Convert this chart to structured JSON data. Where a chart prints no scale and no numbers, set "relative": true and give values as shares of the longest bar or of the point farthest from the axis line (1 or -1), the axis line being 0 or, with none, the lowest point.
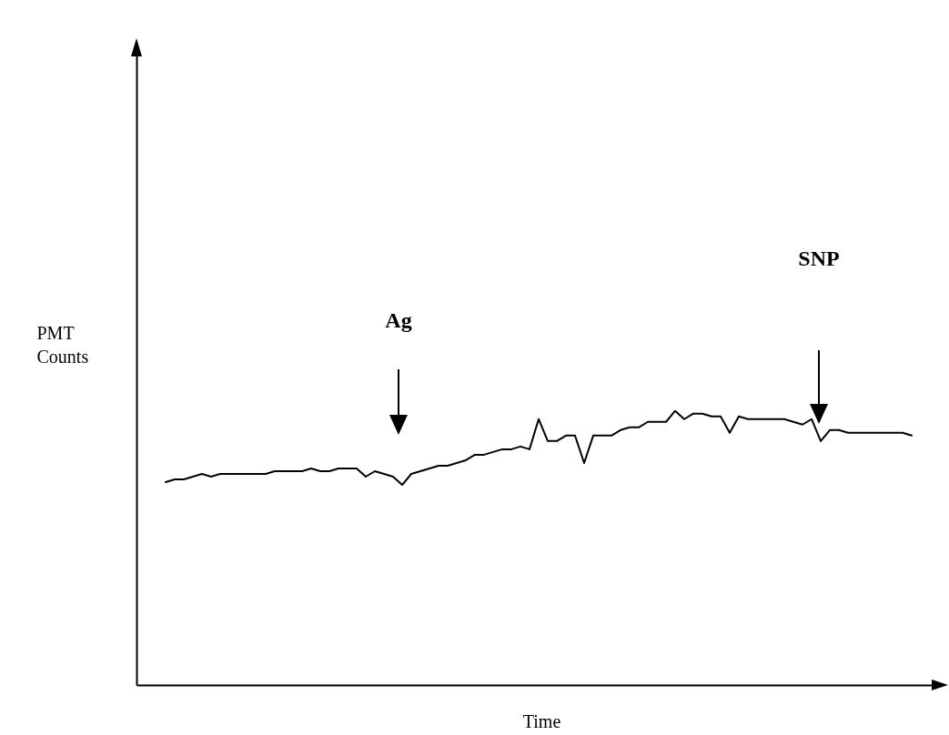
{
  "chart_data": {
    "type": "line",
    "xlabel": "Time",
    "ylabel": "PMT Counts",
    "relative": true,
    "color": "#000000",
    "annotations": [
      "Ag",
      "SNP"
    ],
    "categories": [
      null,
      null,
      null,
      null,
      null,
      null,
      null,
      null,
      null,
      null,
      null,
      null,
      null,
      null,
      null,
      null,
      null,
      null,
      null,
      null,
      null,
      null,
      null,
      null,
      null,
      null,
      null,
      null,
      null,
      null,
      null,
      null,
      null,
      null,
      null,
      null,
      null,
      null,
      null,
      null,
      null,
      null,
      null,
      null,
      null,
      null,
      null,
      null,
      null,
      null,
      null,
      null,
      null,
      null,
      null,
      null,
      null,
      null,
      null,
      null,
      null,
      null,
      null,
      null,
      null,
      null,
      null,
      null,
      null,
      null,
      null,
      null,
      null,
      null,
      null,
      null,
      null,
      null,
      null,
      null,
      null,
      null,
      null
    ],
    "values": [
      0.74,
      0.75,
      0.75,
      0.76,
      0.77,
      0.76,
      0.77,
      0.77,
      0.77,
      0.77,
      0.77,
      0.77,
      0.78,
      0.78,
      0.78,
      0.78,
      0.79,
      0.78,
      0.78,
      0.79,
      0.79,
      0.79,
      0.76,
      0.78,
      0.77,
      0.76,
      0.73,
      0.77,
      0.78,
      0.79,
      0.8,
      0.8,
      0.81,
      0.82,
      0.84,
      0.84,
      0.85,
      0.86,
      0.86,
      0.87,
      0.86,
      0.97,
      0.89,
      0.89,
      0.91,
      0.91,
      0.81,
      0.91,
      0.91,
      0.91,
      0.93,
      0.94,
      0.94,
      0.96,
      0.96,
      0.96,
      1,
      0.97,
      0.99,
      0.99,
      0.98,
      0.98,
      0.92,
      0.98,
      0.97,
      0.97,
      0.97,
      0.97,
      0.97,
      0.96,
      0.95,
      0.97,
      0.89,
      0.93,
      0.93,
      0.92,
      0.92,
      0.92,
      0.92,
      0.92,
      0.92,
      0.92,
      0.91
    ]
  }
}
